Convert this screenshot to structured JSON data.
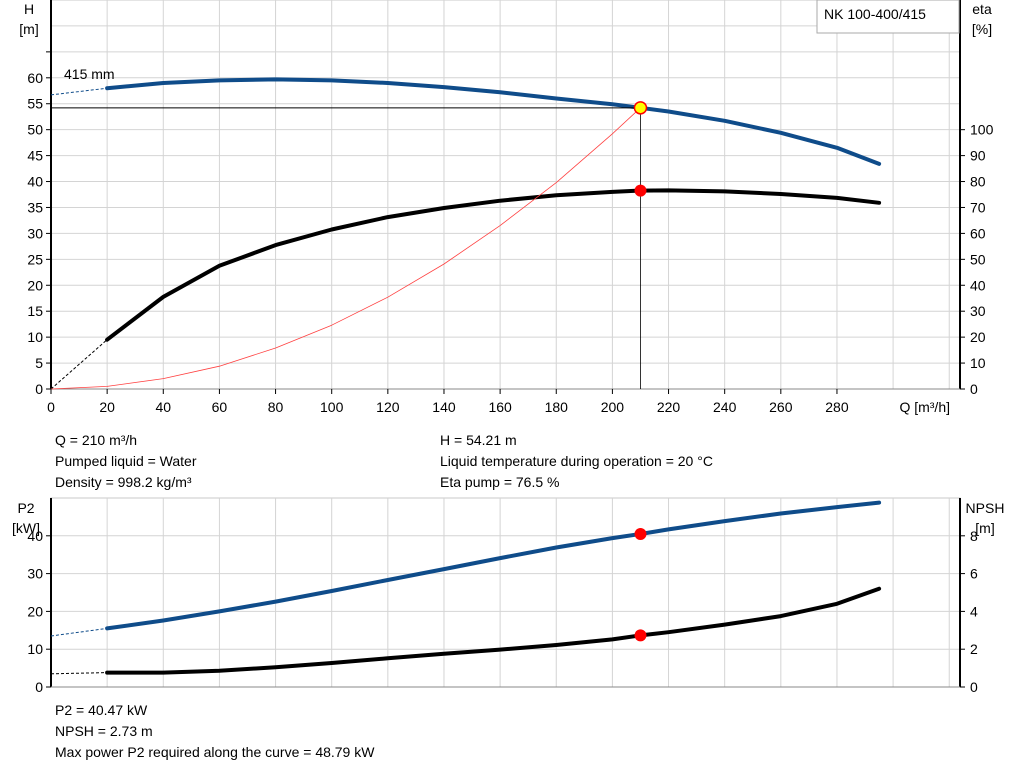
{
  "chart_data": [
    {
      "type": "line",
      "title": "NK 100-400/415",
      "xlabel": "Q [m³/h]",
      "ylabel_left": [
        "H",
        "[m]"
      ],
      "ylabel_right": [
        "eta",
        "[%]"
      ],
      "xlim": [
        0,
        320
      ],
      "ylim_left": [
        0,
        75
      ],
      "ylim_right": [
        0,
        150
      ],
      "x_ticks": [
        0,
        20,
        40,
        60,
        80,
        100,
        120,
        140,
        160,
        180,
        200,
        220,
        240,
        260,
        280
      ],
      "y_ticks_left": [
        0,
        5,
        10,
        15,
        20,
        25,
        30,
        35,
        40,
        45,
        50,
        55,
        60
      ],
      "y_ticks_right": [
        0,
        10,
        20,
        30,
        40,
        50,
        60,
        70,
        80,
        90,
        100
      ],
      "grid": true,
      "curve_label": "415 mm",
      "series": [
        {
          "name": "415 mm",
          "axis": "left",
          "color": "#0f4c8a",
          "width": 4,
          "extrapolated": [
            [
              0,
              56.7
            ],
            [
              20,
              58.0
            ]
          ],
          "points": [
            [
              20,
              58.0
            ],
            [
              40,
              59.0
            ],
            [
              60,
              59.5
            ],
            [
              80,
              59.7
            ],
            [
              100,
              59.5
            ],
            [
              120,
              59.0
            ],
            [
              140,
              58.2
            ],
            [
              160,
              57.2
            ],
            [
              180,
              56.0
            ],
            [
              200,
              54.9
            ],
            [
              210,
              54.21
            ],
            [
              220,
              53.5
            ],
            [
              240,
              51.7
            ],
            [
              260,
              49.4
            ],
            [
              280,
              46.5
            ],
            [
              295,
              43.4
            ]
          ]
        },
        {
          "axis": "right",
          "color": "#000000",
          "width": 4,
          "extrapolated": [
            [
              0,
              0
            ],
            [
              20,
              19
            ]
          ],
          "points": [
            [
              20,
              19
            ],
            [
              40,
              35.5
            ],
            [
              60,
              47.5
            ],
            [
              80,
              55.5
            ],
            [
              100,
              61.5
            ],
            [
              120,
              66.3
            ],
            [
              140,
              69.8
            ],
            [
              160,
              72.6
            ],
            [
              180,
              74.7
            ],
            [
              200,
              76.0
            ],
            [
              210,
              76.5
            ],
            [
              220,
              76.6
            ],
            [
              240,
              76.2
            ],
            [
              260,
              75.2
            ],
            [
              280,
              73.7
            ],
            [
              295,
              71.8
            ]
          ]
        },
        {
          "axis": "left",
          "color": "#ff4040",
          "width": 0.8,
          "points": [
            [
              0,
              0
            ],
            [
              20,
              0.5
            ],
            [
              40,
              2.0
            ],
            [
              60,
              4.4
            ],
            [
              80,
              7.9
            ],
            [
              100,
              12.3
            ],
            [
              120,
              17.7
            ],
            [
              140,
              24.1
            ],
            [
              160,
              31.5
            ],
            [
              180,
              39.8
            ],
            [
              200,
              49.2
            ],
            [
              210,
              54.21
            ]
          ]
        }
      ],
      "operating_point": {
        "Q": 210,
        "H": 54.21,
        "eta": 76.5
      }
    },
    {
      "type": "line",
      "xlim": [
        0,
        320
      ],
      "ylabel_left": [
        "P2",
        "[kW]"
      ],
      "ylabel_right": [
        "NPSH",
        "[m]"
      ],
      "ylim_left": [
        0,
        50
      ],
      "ylim_right": [
        0,
        10
      ],
      "y_ticks_left": [
        0,
        10,
        20,
        30,
        40
      ],
      "y_ticks_right": [
        0,
        2,
        4,
        6,
        8
      ],
      "grid": true,
      "series": [
        {
          "axis": "left",
          "color": "#0f4c8a",
          "width": 4,
          "extrapolated": [
            [
              0,
              13.5
            ],
            [
              20,
              15.5
            ]
          ],
          "points": [
            [
              20,
              15.5
            ],
            [
              40,
              17.6
            ],
            [
              60,
              20.0
            ],
            [
              80,
              22.6
            ],
            [
              100,
              25.4
            ],
            [
              120,
              28.3
            ],
            [
              140,
              31.2
            ],
            [
              160,
              34.1
            ],
            [
              180,
              36.9
            ],
            [
              200,
              39.4
            ],
            [
              210,
              40.47
            ],
            [
              220,
              41.7
            ],
            [
              240,
              43.9
            ],
            [
              260,
              45.9
            ],
            [
              280,
              47.6
            ],
            [
              295,
              48.79
            ]
          ]
        },
        {
          "axis": "right",
          "color": "#000000",
          "width": 4,
          "extrapolated": [
            [
              0,
              0.7
            ],
            [
              20,
              0.76
            ]
          ],
          "points": [
            [
              20,
              0.76
            ],
            [
              40,
              0.76
            ],
            [
              60,
              0.86
            ],
            [
              80,
              1.04
            ],
            [
              100,
              1.27
            ],
            [
              120,
              1.52
            ],
            [
              140,
              1.76
            ],
            [
              160,
              1.98
            ],
            [
              180,
              2.22
            ],
            [
              200,
              2.52
            ],
            [
              210,
              2.73
            ],
            [
              220,
              2.9
            ],
            [
              240,
              3.3
            ],
            [
              260,
              3.75
            ],
            [
              280,
              4.4
            ],
            [
              295,
              5.2
            ]
          ]
        }
      ],
      "operating_point": {
        "Q": 210,
        "P2": 40.47,
        "NPSH": 2.73
      }
    }
  ],
  "info_top": {
    "col1": [
      "Q = 210 m³/h",
      "Pumped liquid = Water",
      "Density = 998.2 kg/m³"
    ],
    "col2": [
      "H = 54.21 m",
      "Liquid temperature during operation = 20 °C",
      "Eta pump = 76.5 %"
    ]
  },
  "info_bottom": [
    "P2 = 40.47 kW",
    "NPSH = 2.73 m",
    "Max power P2 required along the curve = 48.79 kW"
  ]
}
